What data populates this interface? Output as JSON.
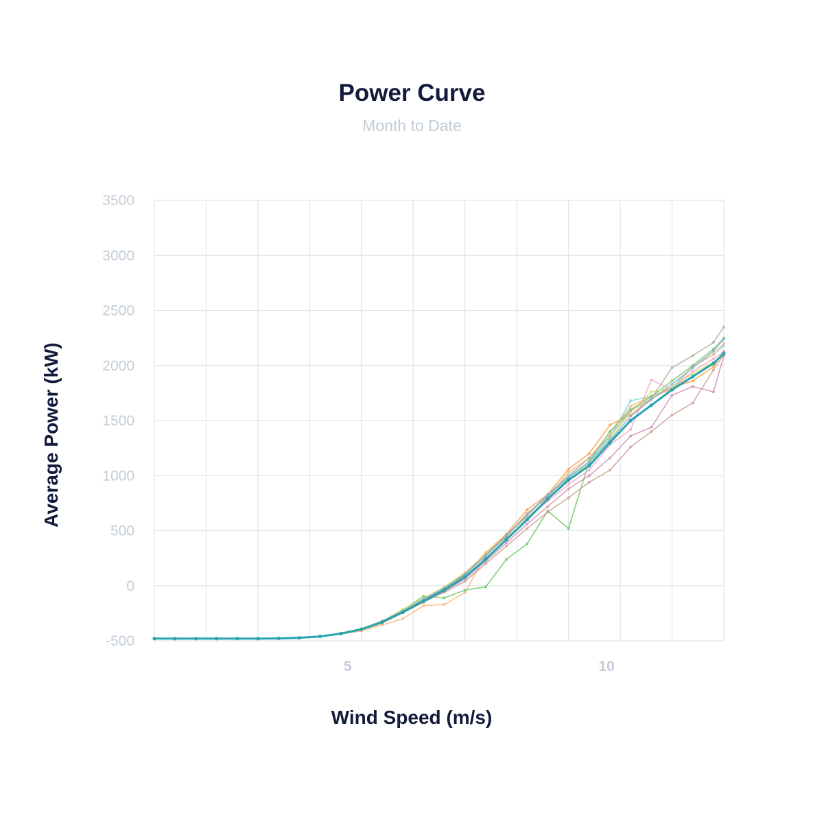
{
  "header": {
    "title": "Power Curve",
    "subtitle": "Month to Date"
  },
  "chart_data": {
    "type": "line",
    "title": "Power Curve",
    "subtitle": "Month to Date",
    "xlabel": "Wind Speed (m/s)",
    "ylabel": "Average Power (kW)",
    "xlim": [
      1,
      12
    ],
    "ylim": [
      -500,
      3500
    ],
    "x_ticks": [
      "5",
      "10"
    ],
    "y_ticks": [
      "-500",
      "0",
      "500",
      "1000",
      "1500",
      "2000",
      "2500",
      "3000",
      "3500"
    ],
    "grid": true,
    "legend": "none",
    "x": [
      1.0,
      1.4,
      1.8,
      2.2,
      2.6,
      3.0,
      3.4,
      3.8,
      4.2,
      4.6,
      5.0,
      5.4,
      5.8,
      6.2,
      6.6,
      7.0,
      7.4,
      7.8,
      8.2,
      8.6,
      9.0,
      9.4,
      9.8,
      10.2,
      10.6,
      11.0,
      11.4,
      11.8,
      12.0
    ],
    "series": [
      {
        "color": "#26a3ad",
        "values": [
          -480,
          -480,
          -480,
          -480,
          -480,
          -480,
          -478,
          -473,
          -460,
          -435,
          -395,
          -330,
          -240,
          -140,
          -40,
          80,
          240,
          420,
          600,
          790,
          960,
          1090,
          1300,
          1500,
          1640,
          1780,
          1900,
          2020,
          2110
        ]
      },
      {
        "color": "#7fd6de",
        "values": [
          -480,
          -480,
          -480,
          -480,
          -480,
          -480,
          -477,
          -472,
          -458,
          -430,
          -390,
          -320,
          -225,
          -120,
          -20,
          110,
          270,
          450,
          640,
          820,
          990,
          1130,
          1350,
          1680,
          1720,
          1800,
          1990,
          2100,
          2180
        ]
      },
      {
        "color": "#f5a14a",
        "values": [
          -480,
          -480,
          -480,
          -480,
          -480,
          -480,
          -477,
          -473,
          -460,
          -432,
          -392,
          -325,
          -230,
          -125,
          -30,
          100,
          300,
          470,
          690,
          830,
          1060,
          1200,
          1460,
          1550,
          1700,
          1800,
          1860,
          1990,
          2130
        ]
      },
      {
        "color": "#f7b87a",
        "values": [
          -480,
          -480,
          -480,
          -480,
          -480,
          -480,
          -478,
          -474,
          -462,
          -440,
          -410,
          -355,
          -300,
          -180,
          -170,
          -60,
          280,
          440,
          660,
          800,
          1030,
          1160,
          1390,
          1630,
          1720,
          1780,
          1990,
          2100,
          2200
        ]
      },
      {
        "color": "#6bc867",
        "values": [
          -480,
          -480,
          -480,
          -480,
          -480,
          -480,
          -477,
          -472,
          -458,
          -430,
          -390,
          -325,
          -220,
          -95,
          -110,
          -40,
          -10,
          240,
          380,
          680,
          520,
          1130,
          1400,
          1600,
          1720,
          1860,
          2000,
          2150,
          2250
        ]
      },
      {
        "color": "#d9e06a",
        "values": [
          -480,
          -480,
          -480,
          -480,
          -480,
          -480,
          -477,
          -472,
          -458,
          -430,
          -390,
          -320,
          -215,
          -115,
          -10,
          120,
          290,
          460,
          620,
          790,
          950,
          1120,
          1330,
          1580,
          1760,
          1800,
          1930,
          2030,
          2090
        ]
      },
      {
        "color": "#f4a6c9",
        "values": [
          -480,
          -480,
          -480,
          -480,
          -480,
          -480,
          -478,
          -473,
          -460,
          -435,
          -395,
          -330,
          -235,
          -130,
          -40,
          70,
          250,
          420,
          610,
          770,
          920,
          1050,
          1280,
          1420,
          1870,
          1780,
          1950,
          2060,
          2130
        ]
      },
      {
        "color": "#d38fb6",
        "values": [
          -480,
          -480,
          -480,
          -480,
          -480,
          -480,
          -478,
          -473,
          -461,
          -437,
          -398,
          -335,
          -240,
          -140,
          -50,
          60,
          220,
          390,
          560,
          720,
          880,
          1000,
          1160,
          1360,
          1440,
          1730,
          1810,
          1760,
          2090
        ]
      },
      {
        "color": "#c9a191",
        "values": [
          -480,
          -480,
          -480,
          -480,
          -480,
          -480,
          -478,
          -474,
          -462,
          -438,
          -400,
          -340,
          -245,
          -150,
          -60,
          40,
          200,
          360,
          520,
          670,
          800,
          940,
          1050,
          1260,
          1400,
          1550,
          1660,
          1960,
          2100
        ]
      },
      {
        "color": "#a9b3a0",
        "values": [
          -480,
          -480,
          -480,
          -480,
          -480,
          -480,
          -477,
          -472,
          -458,
          -432,
          -392,
          -322,
          -228,
          -120,
          -20,
          110,
          280,
          460,
          650,
          830,
          1000,
          1160,
          1360,
          1590,
          1700,
          1980,
          2090,
          2210,
          2350
        ]
      },
      {
        "color": "#8aa9d1",
        "values": [
          -480,
          -480,
          -480,
          -480,
          -480,
          -480,
          -477,
          -472,
          -459,
          -433,
          -393,
          -324,
          -230,
          -125,
          -25,
          100,
          270,
          450,
          640,
          820,
          980,
          1120,
          1320,
          1540,
          1690,
          1830,
          1980,
          2130,
          2240
        ]
      }
    ]
  }
}
